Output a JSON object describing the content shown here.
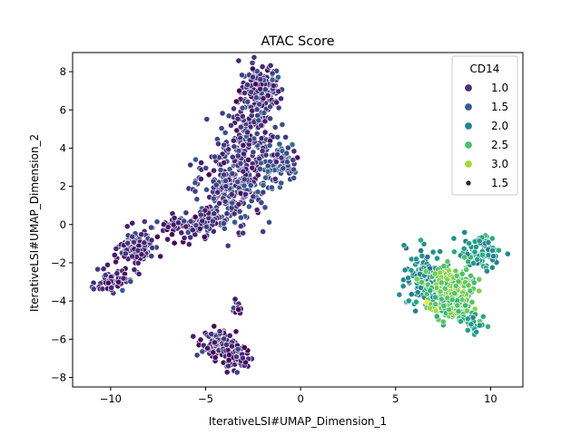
{
  "chart_data": {
    "type": "scatter",
    "title": "ATAC Score",
    "xlabel": "IterativeLSI#UMAP_Dimension_1",
    "ylabel": "IterativeLSI#UMAP_Dimension_2",
    "xlim": [
      -12,
      11.7
    ],
    "ylim": [
      -8.5,
      9
    ],
    "xticks": [
      -10,
      -5,
      0,
      5,
      10
    ],
    "yticks": [
      -8,
      -6,
      -4,
      -2,
      0,
      2,
      4,
      6,
      8
    ],
    "grid": false,
    "legend": {
      "title": "CD14",
      "placement": "top-right",
      "hue_entries": [
        {
          "label": "1.0",
          "color": "#46327e"
        },
        {
          "label": "1.5",
          "color": "#365c8d"
        },
        {
          "label": "2.0",
          "color": "#277f8e"
        },
        {
          "label": "2.5",
          "color": "#4ac16d"
        },
        {
          "label": "3.0",
          "color": "#a0da39"
        }
      ],
      "size_entries": [
        {
          "label": "1.5"
        }
      ]
    },
    "colormap": "viridis",
    "hue_range": [
      0.7,
      3.3
    ],
    "clusters": [
      {
        "cx": -2.1,
        "cy": 7.0,
        "sx": 0.55,
        "sy": 0.7,
        "n": 150,
        "hue": 1.05
      },
      {
        "cx": -2.8,
        "cy": 4.3,
        "sx": 0.75,
        "sy": 1.2,
        "n": 200,
        "hue": 1.1
      },
      {
        "cx": -3.8,
        "cy": 1.8,
        "sx": 0.9,
        "sy": 1.0,
        "n": 230,
        "hue": 1.1
      },
      {
        "cx": -1.2,
        "cy": 3.2,
        "sx": 0.5,
        "sy": 0.6,
        "n": 70,
        "hue": 1.3
      },
      {
        "cx": -4.8,
        "cy": 0.2,
        "sx": 0.5,
        "sy": 0.3,
        "n": 70,
        "hue": 1.05
      },
      {
        "cx": -6.5,
        "cy": -0.2,
        "sx": 0.6,
        "sy": 0.35,
        "n": 50,
        "hue": 1.0
      },
      {
        "cx": -8.6,
        "cy": -1.3,
        "sx": 0.45,
        "sy": 0.5,
        "n": 110,
        "hue": 0.95
      },
      {
        "cx": -10.0,
        "cy": -3.0,
        "sx": 0.4,
        "sy": 0.3,
        "n": 60,
        "hue": 1.0
      },
      {
        "cx": -4.3,
        "cy": -6.3,
        "sx": 0.45,
        "sy": 0.35,
        "n": 110,
        "hue": 0.9
      },
      {
        "cx": -3.3,
        "cy": -7.0,
        "sx": 0.35,
        "sy": 0.3,
        "n": 50,
        "hue": 0.9
      },
      {
        "cx": -3.3,
        "cy": -4.3,
        "sx": 0.15,
        "sy": 0.2,
        "n": 15,
        "hue": 0.95
      },
      {
        "cx": 6.6,
        "cy": -2.8,
        "sx": 0.55,
        "sy": 0.8,
        "n": 140,
        "hue": 2.0
      },
      {
        "cx": 9.4,
        "cy": -1.5,
        "sx": 0.55,
        "sy": 0.5,
        "n": 100,
        "hue": 2.1
      },
      {
        "cx": 7.9,
        "cy": -3.2,
        "sx": 0.6,
        "sy": 0.45,
        "n": 130,
        "hue": 2.7
      },
      {
        "cx": 8.0,
        "cy": -4.3,
        "sx": 0.6,
        "sy": 0.45,
        "n": 100,
        "hue": 2.6
      },
      {
        "cx": 9.1,
        "cy": -5.2,
        "sx": 0.35,
        "sy": 0.25,
        "n": 25,
        "hue": 2.2
      }
    ]
  }
}
